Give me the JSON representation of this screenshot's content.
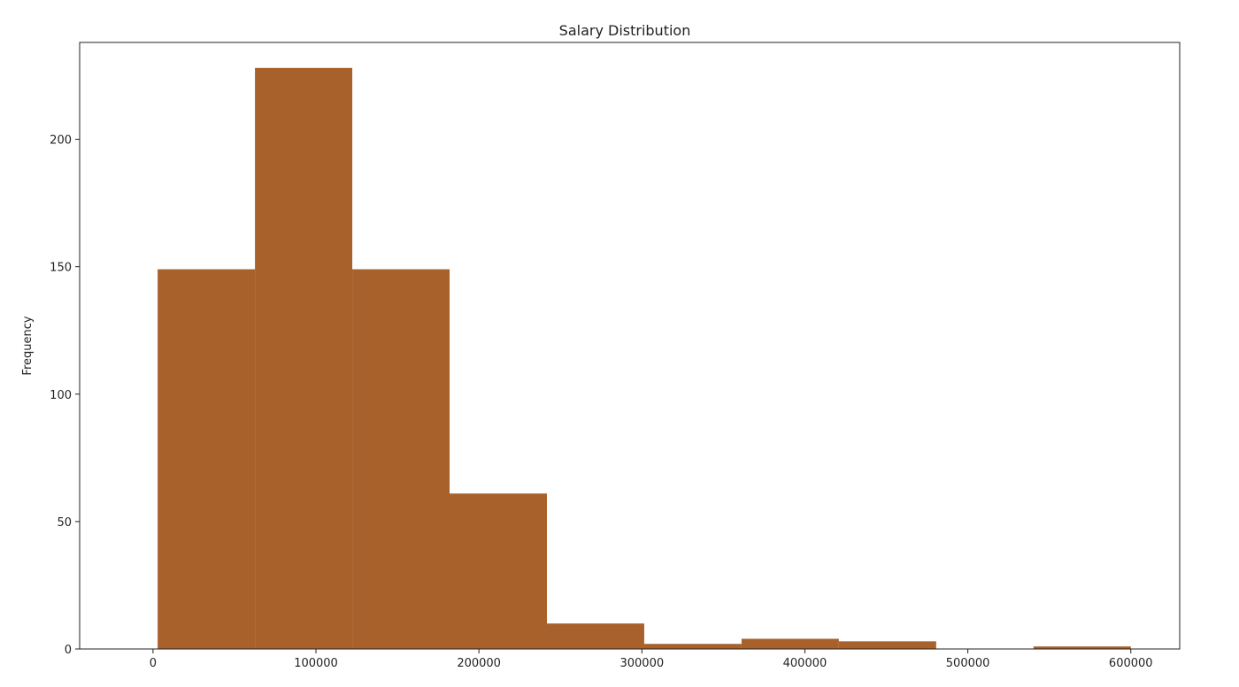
{
  "chart_data": {
    "type": "bar",
    "subtype": "histogram",
    "title": "Salary Distribution",
    "xlabel": "",
    "ylabel": "Frequency",
    "bar_color": "#a8612a",
    "grid": false,
    "legend": false,
    "xlim": [
      -45000,
      630000
    ],
    "ylim": [
      0,
      238
    ],
    "bins": [
      {
        "start": 2859,
        "end": 62574,
        "count": 149
      },
      {
        "start": 62574,
        "end": 122288,
        "count": 228
      },
      {
        "start": 122288,
        "end": 182003,
        "count": 149
      },
      {
        "start": 182003,
        "end": 241717,
        "count": 61
      },
      {
        "start": 241717,
        "end": 301432,
        "count": 10
      },
      {
        "start": 301432,
        "end": 361146,
        "count": 2
      },
      {
        "start": 361146,
        "end": 420861,
        "count": 4
      },
      {
        "start": 420861,
        "end": 480575,
        "count": 3
      },
      {
        "start": 480575,
        "end": 540290,
        "count": 0
      },
      {
        "start": 540290,
        "end": 600000,
        "count": 1
      }
    ],
    "xticks": [
      {
        "value": 0,
        "label": "0"
      },
      {
        "value": 100000,
        "label": "100000"
      },
      {
        "value": 200000,
        "label": "200000"
      },
      {
        "value": 300000,
        "label": "300000"
      },
      {
        "value": 400000,
        "label": "400000"
      },
      {
        "value": 500000,
        "label": "500000"
      },
      {
        "value": 600000,
        "label": "600000"
      }
    ],
    "yticks": [
      {
        "value": 0,
        "label": "0"
      },
      {
        "value": 50,
        "label": "50"
      },
      {
        "value": 100,
        "label": "100"
      },
      {
        "value": 150,
        "label": "150"
      },
      {
        "value": 200,
        "label": "200"
      }
    ]
  }
}
